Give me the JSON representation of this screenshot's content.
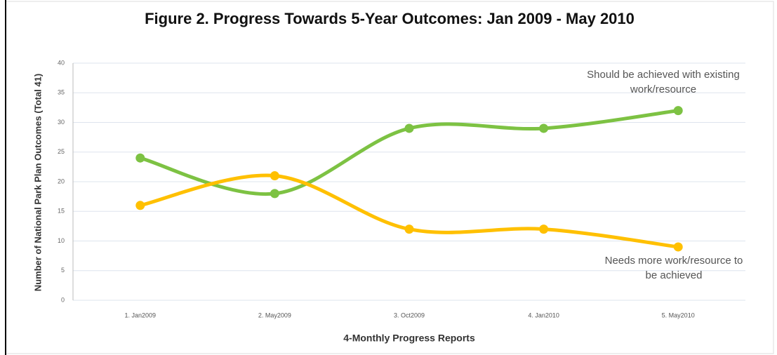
{
  "chart_data": {
    "type": "line",
    "title": "Figure 2. Progress Towards 5-Year Outcomes: Jan 2009 - May 2010",
    "x_label": "4-Monthly Progress Reports",
    "y_label": "Number of National Park Plan Outcomes (Total 41)",
    "categories": [
      "1. Jan2009",
      "2. May2009",
      "3. Oct2009",
      "4. Jan2010",
      "5. May2010"
    ],
    "series": [
      {
        "name": "Should be achieved with existing work/resource",
        "color": "#7dc243",
        "values": [
          24,
          18,
          29,
          29,
          32
        ]
      },
      {
        "name": "Needs more work/resource to be achieved",
        "color": "#ffc000",
        "values": [
          16,
          21,
          12,
          12,
          9
        ]
      }
    ],
    "ylim": [
      0,
      40
    ],
    "yticks": [
      0,
      5,
      10,
      15,
      20,
      25,
      30,
      35,
      40
    ],
    "grid": true
  }
}
